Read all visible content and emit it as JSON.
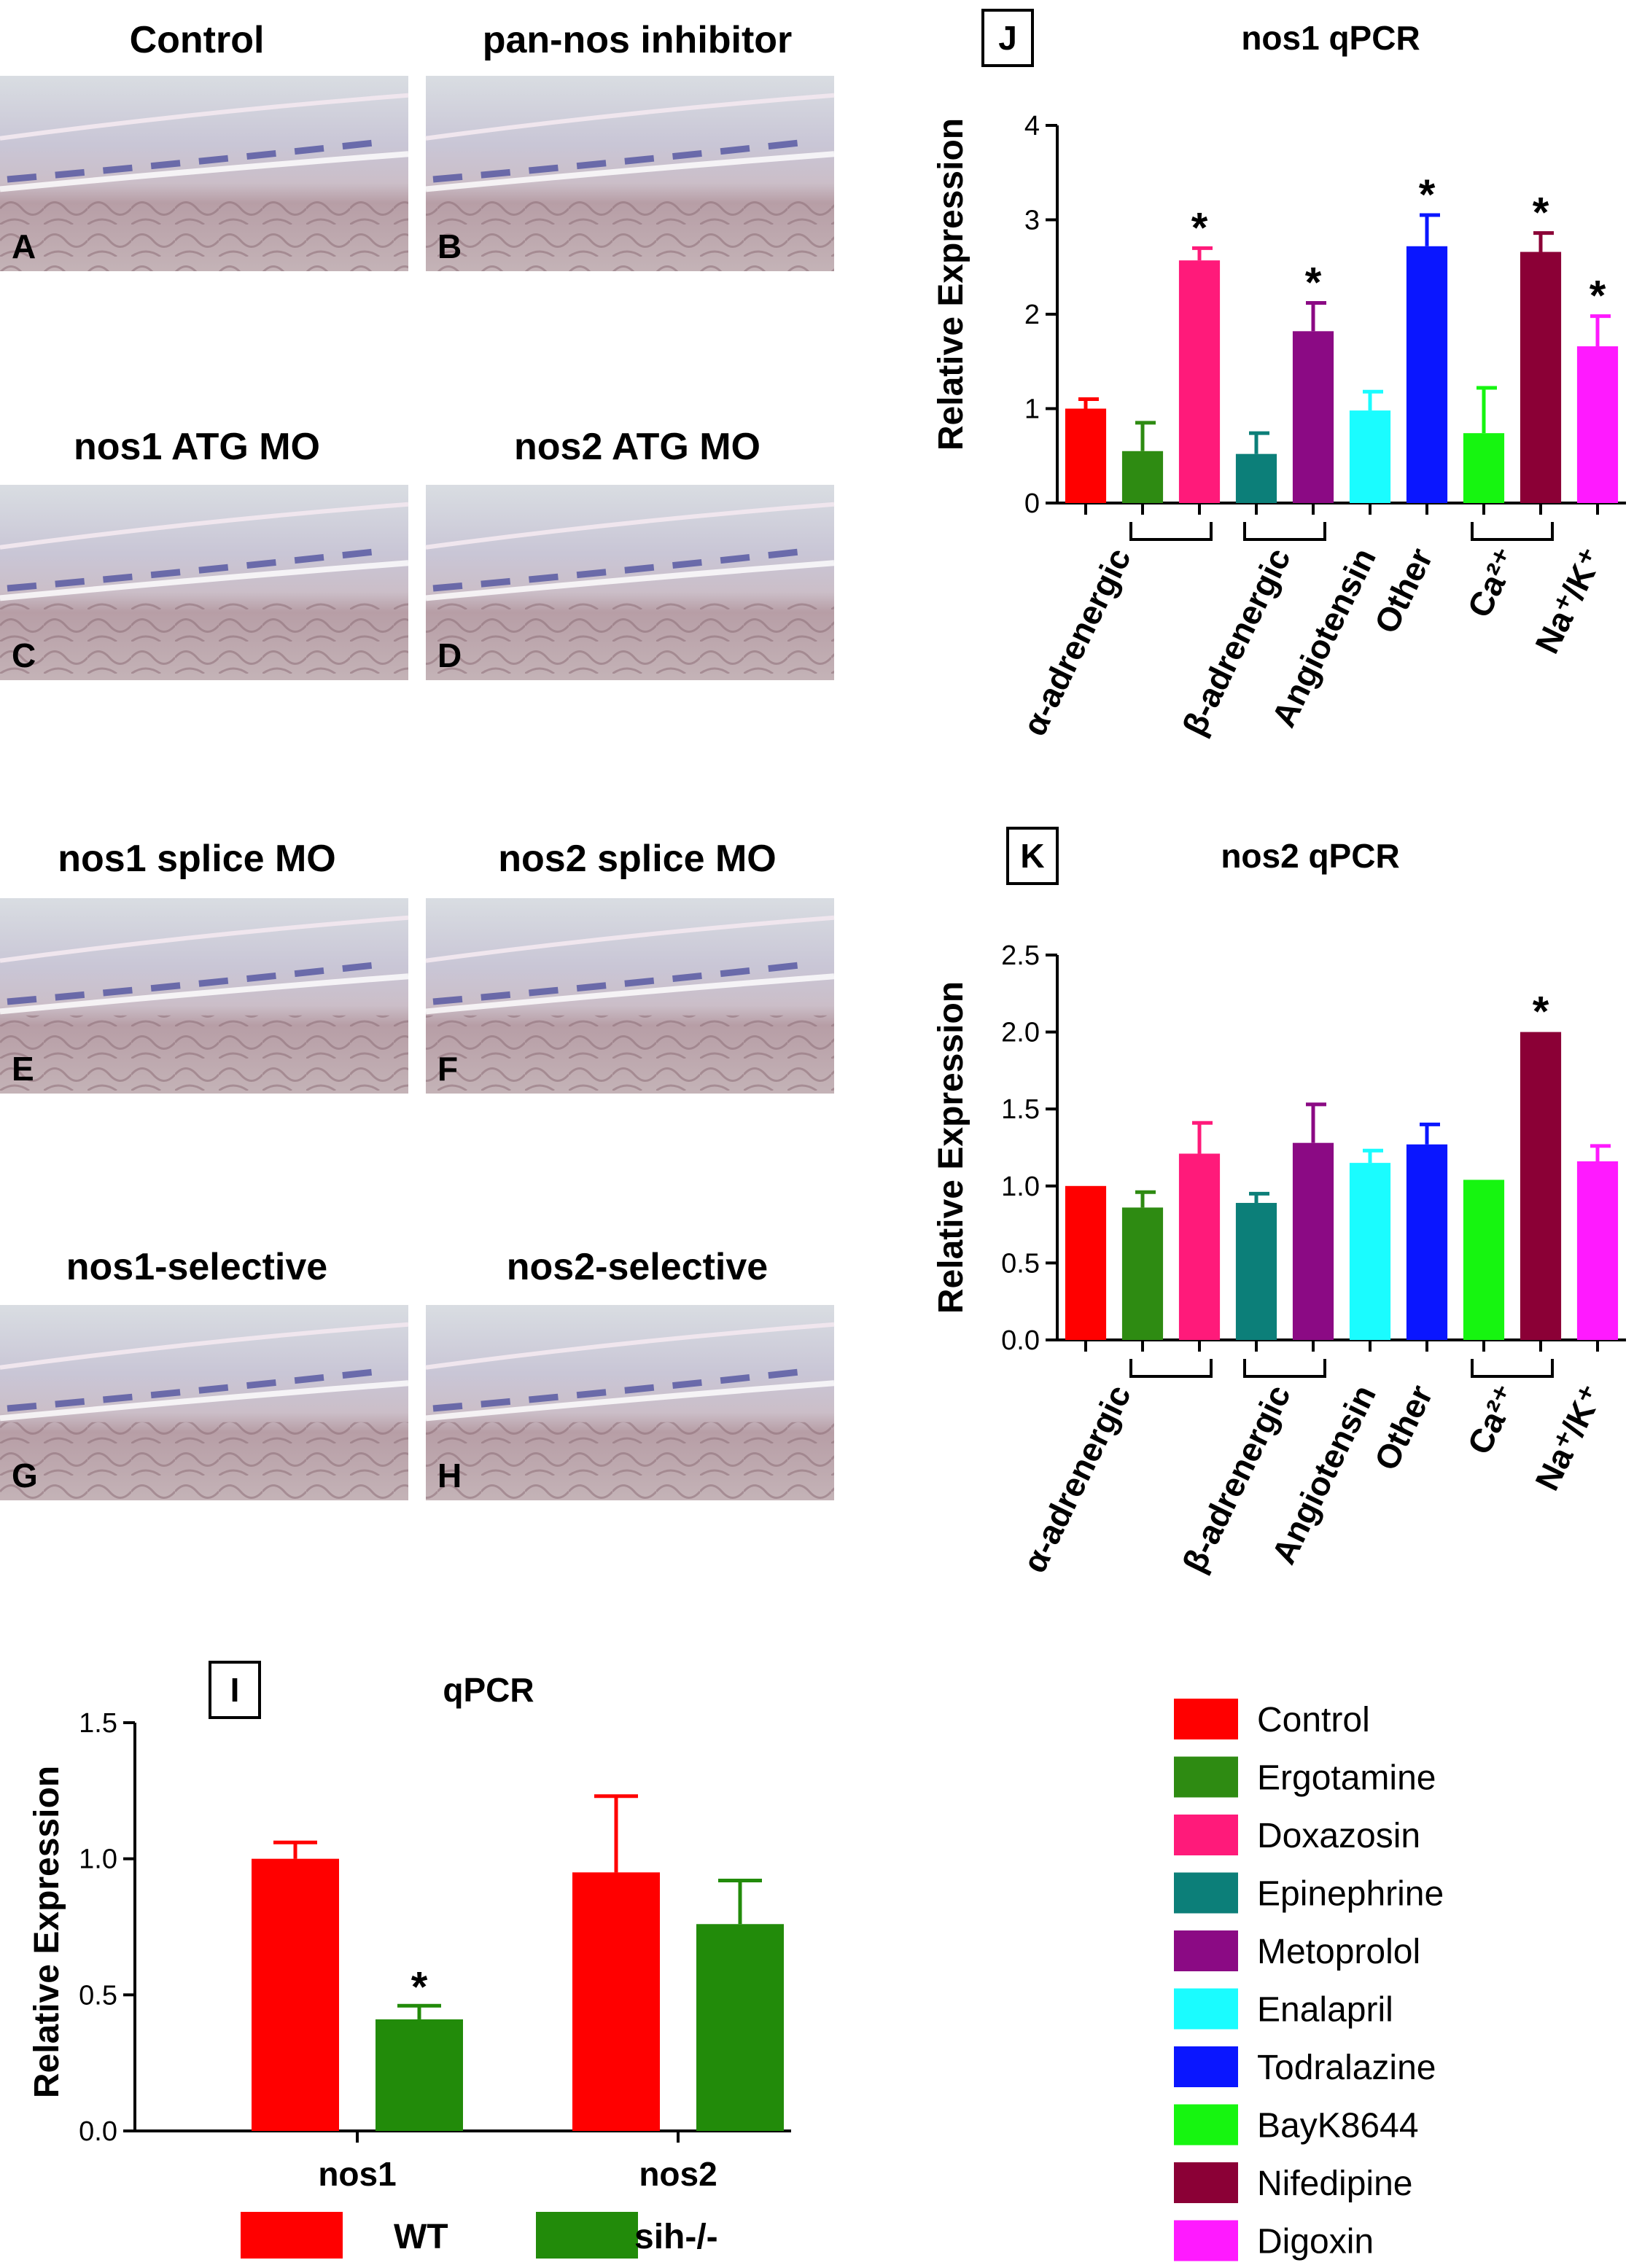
{
  "micrographs": [
    {
      "letter": "A",
      "title": "Control"
    },
    {
      "letter": "B",
      "title": "pan-nos inhibitor"
    },
    {
      "letter": "C",
      "title": "nos1 ATG MO"
    },
    {
      "letter": "D",
      "title": "nos2 ATG MO"
    },
    {
      "letter": "E",
      "title": "nos1 splice MO"
    },
    {
      "letter": "F",
      "title": "nos2 splice MO"
    },
    {
      "letter": "G",
      "title": "nos1-selective"
    },
    {
      "letter": "H",
      "title": "nos2-selective"
    }
  ],
  "drug_groups": [
    "α-adrenergic",
    "β-adrenergic",
    "Angiotensin",
    "Other",
    "Ca²⁺",
    "Na⁺/K⁺"
  ],
  "chart_data": [
    {
      "panel": "J",
      "type": "bar",
      "title": "nos1 qPCR",
      "ylabel": "Relative Expression",
      "ylim": [
        0,
        4
      ],
      "yticks": [
        "0",
        "1",
        "2",
        "3",
        "4"
      ],
      "categories": [
        "Control",
        "Ergotamine",
        "Doxazosin",
        "Epinephrine",
        "Metoprolol",
        "Enalapril",
        "Todralazine",
        "BayK8644",
        "Nifedipine",
        "Digoxin"
      ],
      "values": [
        1.0,
        0.55,
        2.57,
        0.52,
        1.82,
        0.98,
        2.72,
        0.74,
        2.66,
        1.66
      ],
      "errors": [
        0.1,
        0.3,
        0.13,
        0.22,
        0.3,
        0.2,
        0.33,
        0.48,
        0.2,
        0.32
      ],
      "significant": [
        false,
        false,
        true,
        false,
        true,
        false,
        true,
        false,
        true,
        true
      ]
    },
    {
      "panel": "K",
      "type": "bar",
      "title": "nos2 qPCR",
      "ylabel": "Relative Expression",
      "ylim": [
        0,
        2.5
      ],
      "yticks": [
        "0.0",
        "0.5",
        "1.0",
        "1.5",
        "2.0",
        "2.5"
      ],
      "categories": [
        "Control",
        "Ergotamine",
        "Doxazosin",
        "Epinephrine",
        "Metoprolol",
        "Enalapril",
        "Todralazine",
        "BayK8644",
        "Nifedipine",
        "Digoxin"
      ],
      "values": [
        1.0,
        0.86,
        1.21,
        0.89,
        1.28,
        1.15,
        1.27,
        1.04,
        2.0,
        1.16
      ],
      "errors": [
        0.0,
        0.1,
        0.2,
        0.06,
        0.25,
        0.08,
        0.13,
        0.0,
        0.0,
        0.1
      ],
      "significant": [
        false,
        false,
        false,
        false,
        false,
        false,
        false,
        false,
        true,
        false
      ]
    },
    {
      "panel": "I",
      "type": "bar",
      "title": "qPCR",
      "ylabel": "Relative Expression",
      "ylim": [
        0,
        1.5
      ],
      "yticks": [
        "0.0",
        "0.5",
        "1.0",
        "1.5"
      ],
      "categories": [
        "nos1",
        "nos2"
      ],
      "series": [
        {
          "name": "WT",
          "values": [
            1.0,
            0.95
          ],
          "errors": [
            0.06,
            0.28
          ]
        },
        {
          "name": "sih-/-",
          "values": [
            0.41,
            0.76
          ],
          "errors": [
            0.05,
            0.16
          ]
        }
      ],
      "significant_marker": "*"
    }
  ],
  "legend": {
    "items": [
      "Control",
      "Ergotamine",
      "Doxazosin",
      "Epinephrine",
      "Metoprolol",
      "Enalapril",
      "Todralazine",
      "BayK8644",
      "Nifedipine",
      "Digoxin"
    ]
  },
  "colors": {
    "drugs": [
      "#ff0000",
      "#2e8b12",
      "#ff1a7a",
      "#0c7f79",
      "#8b0a84",
      "#1afcff",
      "#0a16ff",
      "#16f510",
      "#8b0036",
      "#ff1aff"
    ],
    "wt": "#ff0000",
    "sih": "#228b0a"
  }
}
